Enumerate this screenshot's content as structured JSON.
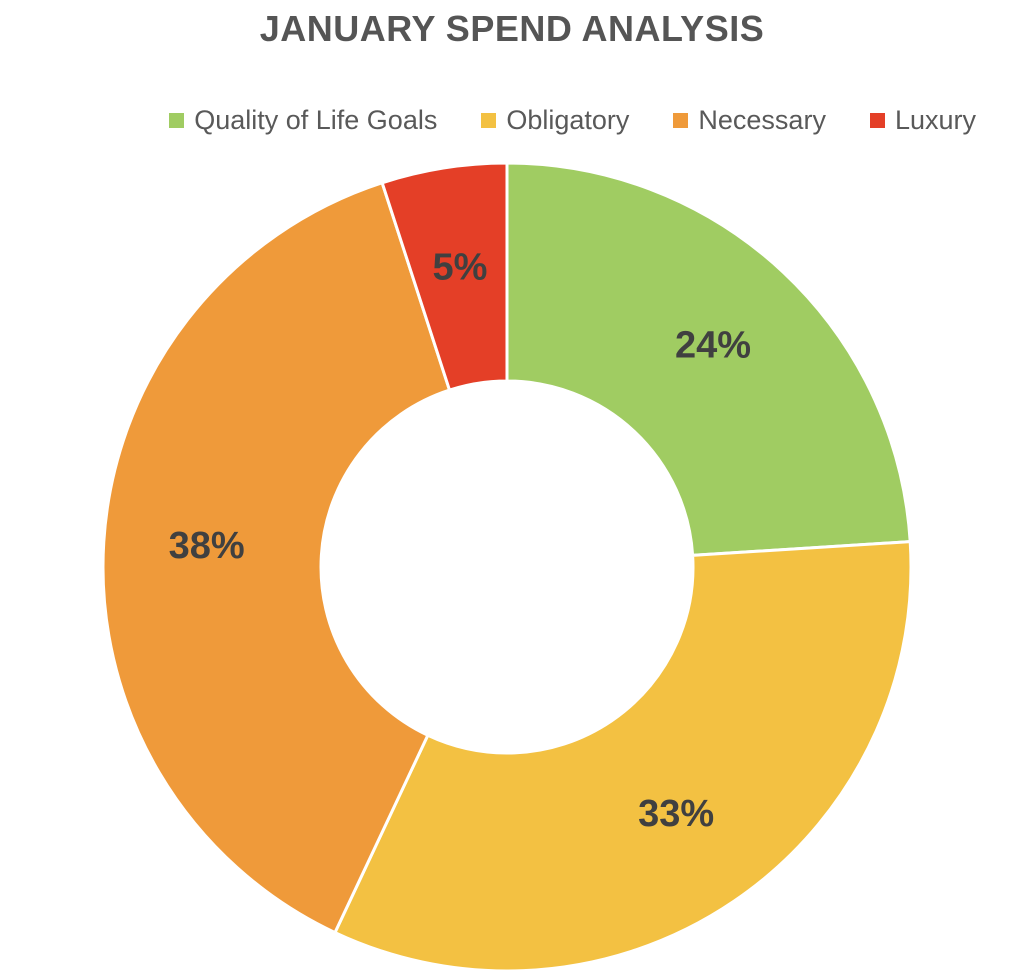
{
  "chart_data": {
    "type": "pie",
    "title": "JANUARY SPEND ANALYSIS",
    "donut": true,
    "legend_position": "top-right",
    "categories": [
      "Quality of Life Goals",
      "Obligatory",
      "Necessary",
      "Luxury"
    ],
    "values": [
      24,
      33,
      38,
      5
    ],
    "data_labels": [
      "24%",
      "33%",
      "38%",
      "5%"
    ],
    "colors": [
      "#A0CC62",
      "#F3C142",
      "#EF9A3A",
      "#E43F27"
    ]
  }
}
